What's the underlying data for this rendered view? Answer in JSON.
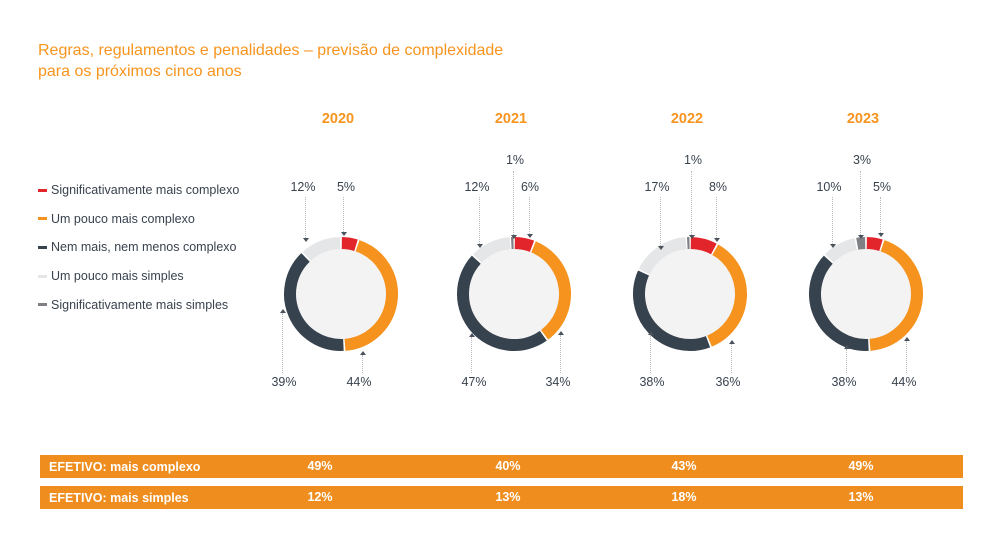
{
  "title": "Regras, regulamentos e penalidades – previsão de complexidade para os próximos cinco anos",
  "colors": {
    "accent_orange": "#F7941E",
    "bar_orange": "#EF8D1F",
    "text_dark": "#39424E",
    "donut_inner": "#F3F3F4"
  },
  "chart_data": {
    "type": "pie",
    "variant": "donut-ring-multiples",
    "title": "Regras, regulamentos e penalidades – previsão de complexidade para os próximos cinco anos",
    "years": [
      "2020",
      "2021",
      "2022",
      "2023"
    ],
    "categories": [
      "Significativamente mais complexo",
      "Um pouco mais complexo",
      "Nem mais, nem menos complexo",
      "Um pouco mais simples",
      "Significativamente mais simples"
    ],
    "segment_colors": [
      "#E2242B",
      "#F6921E",
      "#36424E",
      "#E5E6E7",
      "#7E8083"
    ],
    "series": [
      {
        "year": "2020",
        "values": [
          5,
          44,
          39,
          12,
          0
        ]
      },
      {
        "year": "2021",
        "values": [
          6,
          34,
          47,
          12,
          1
        ]
      },
      {
        "year": "2022",
        "values": [
          8,
          36,
          38,
          17,
          1
        ]
      },
      {
        "year": "2023",
        "values": [
          5,
          44,
          38,
          10,
          3
        ]
      }
    ],
    "label_unit": "%",
    "legend_position": "left",
    "grid": false
  },
  "summary_bars": [
    {
      "label": "EFETIVO: mais complexo",
      "values": [
        "49%",
        "40%",
        "43%",
        "49%"
      ]
    },
    {
      "label": "EFETIVO: mais simples",
      "values": [
        "12%",
        "13%",
        "18%",
        "13%"
      ]
    }
  ]
}
